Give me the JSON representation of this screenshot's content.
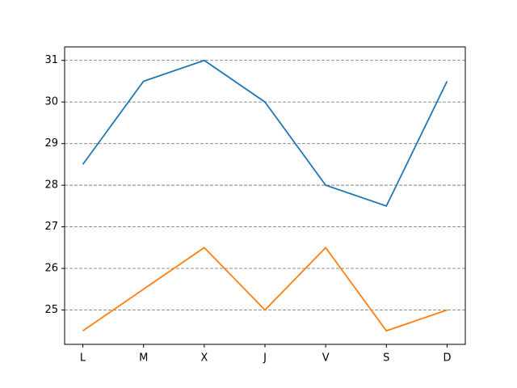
{
  "chart_data": {
    "type": "line",
    "categories": [
      "L",
      "M",
      "X",
      "J",
      "V",
      "S",
      "D"
    ],
    "series": [
      {
        "color": "#1f77b4",
        "values": [
          28.5,
          30.5,
          31,
          30,
          28,
          27.5,
          30.5
        ]
      },
      {
        "color": "#ff7f0e",
        "values": [
          24.5,
          25.5,
          26.5,
          25,
          26.5,
          24.5,
          25
        ]
      }
    ],
    "ylim": [
      24.175,
      31.325
    ],
    "yticks": [
      25,
      26,
      27,
      28,
      29,
      30,
      31
    ],
    "grid": true
  }
}
